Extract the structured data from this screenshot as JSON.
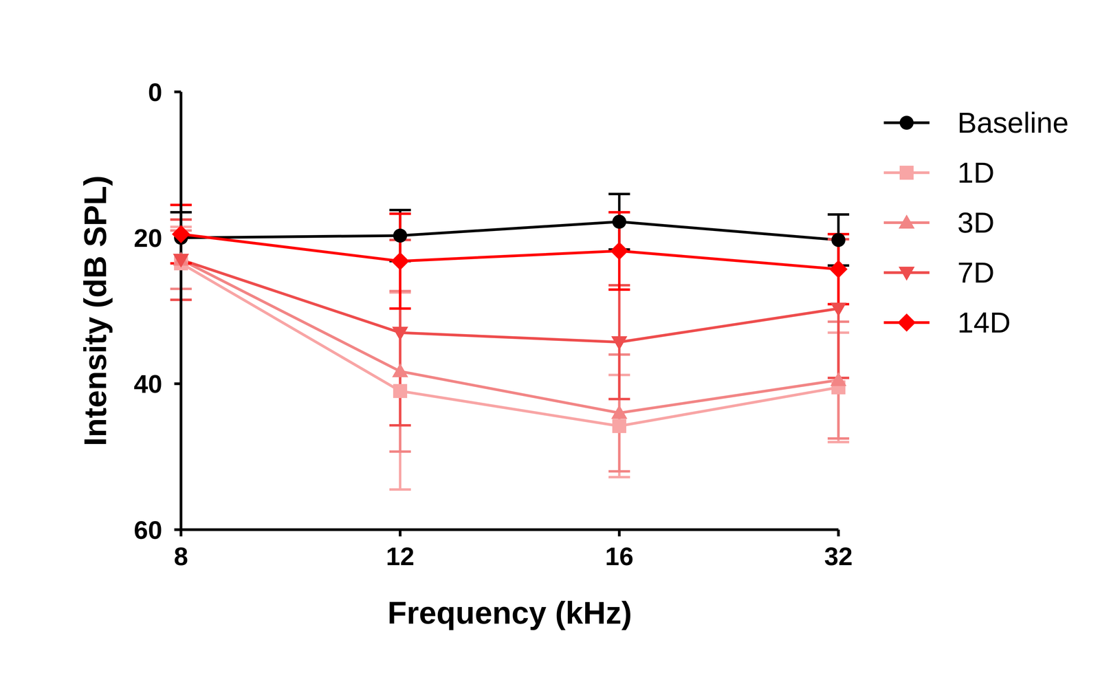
{
  "chart_data": {
    "type": "line",
    "x_label": "Frequency (kHz)",
    "y_label": "Intensity (dB SPL)",
    "categories": [
      "8",
      "12",
      "16",
      "32"
    ],
    "ylim": [
      0,
      60
    ],
    "yticks": [
      0,
      20,
      40,
      60
    ],
    "y_inverted": true,
    "legend": "right",
    "grid": false,
    "series": [
      {
        "name": "Baseline",
        "color": "#000000",
        "marker": "circle",
        "values": [
          20,
          19.7,
          17.8,
          20.3
        ],
        "errors": [
          3.5,
          3.5,
          3.8,
          3.5
        ]
      },
      {
        "name": "1D",
        "color": "#f8a5a5",
        "marker": "square",
        "values": [
          23.5,
          41,
          45.8,
          40.5
        ],
        "errors": [
          5,
          13.5,
          7,
          7.5
        ]
      },
      {
        "name": "3D",
        "color": "#f28585",
        "marker": "triangle",
        "values": [
          23,
          38.3,
          44,
          39.5
        ],
        "errors": [
          4,
          11,
          8,
          8
        ]
      },
      {
        "name": "7D",
        "color": "#ee4d4d",
        "marker": "triangle-down",
        "values": [
          23,
          33,
          34.3,
          29.7
        ],
        "errors": [
          5.5,
          12.7,
          7.8,
          9.5
        ]
      },
      {
        "name": "14D",
        "color": "#ff0000",
        "marker": "diamond",
        "values": [
          19.5,
          23.2,
          21.8,
          24.3
        ],
        "errors": [
          4,
          6.5,
          5.3,
          4.8
        ]
      }
    ]
  }
}
